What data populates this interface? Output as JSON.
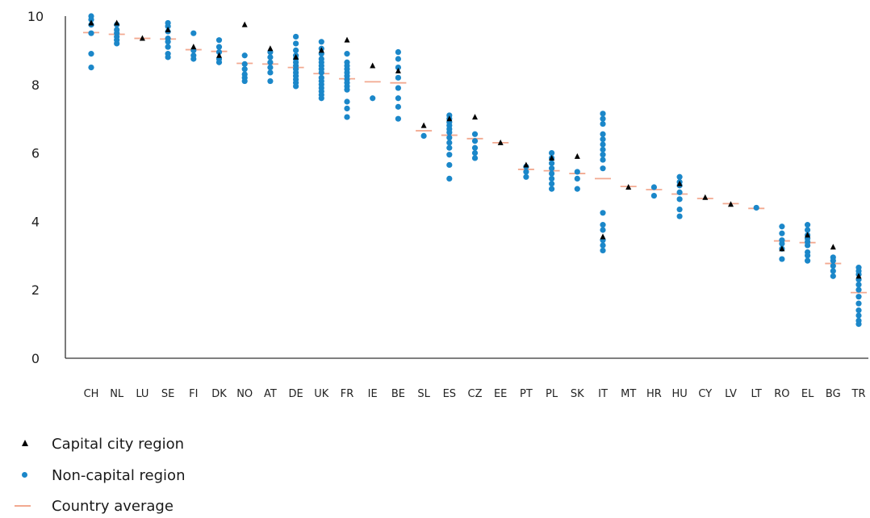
{
  "chart_data": {
    "type": "scatter",
    "title": "",
    "xlabel": "",
    "ylabel": "",
    "ylim": [
      0,
      10
    ],
    "y_ticks": [
      "0",
      "2",
      "4",
      "6",
      "8",
      "10"
    ],
    "grid": false,
    "legend_position": "bottom-left",
    "categories": [
      "CH",
      "NL",
      "LU",
      "SE",
      "FI",
      "DK",
      "NO",
      "AT",
      "DE",
      "UK",
      "FR",
      "IE",
      "BE",
      "SL",
      "ES",
      "CZ",
      "EE",
      "PT",
      "PL",
      "SK",
      "IT",
      "MT",
      "HR",
      "HU",
      "CY",
      "LV",
      "LT",
      "RO",
      "EL",
      "BG",
      "TR"
    ],
    "series": [
      {
        "name": "Capital city region",
        "marker": "triangle",
        "color": "#000000",
        "values": [
          9.8,
          9.8,
          9.35,
          9.6,
          9.1,
          8.85,
          9.75,
          9.05,
          8.8,
          9.0,
          9.3,
          8.55,
          8.4,
          6.8,
          7.0,
          7.05,
          6.3,
          5.65,
          5.85,
          5.9,
          3.55,
          5.0,
          null,
          5.1,
          4.7,
          4.5,
          null,
          3.2,
          3.6,
          3.25,
          2.4
        ]
      },
      {
        "name": "Non-capital region",
        "marker": "circle",
        "color": "#1b87c9",
        "values": [
          [
            10.0,
            9.9,
            9.75,
            9.5,
            8.9,
            8.5
          ],
          [
            9.75,
            9.6,
            9.5,
            9.4,
            9.3,
            9.2
          ],
          [],
          [
            9.8,
            9.7,
            9.55,
            9.35,
            9.25,
            9.1,
            8.9,
            8.8
          ],
          [
            9.5,
            9.0,
            8.85,
            8.75
          ],
          [
            9.3,
            9.1,
            8.95,
            8.75,
            8.65
          ],
          [
            8.85,
            8.6,
            8.45,
            8.3,
            8.2,
            8.1
          ],
          [
            8.95,
            8.8,
            8.65,
            8.5,
            8.35,
            8.1
          ],
          [
            9.4,
            9.2,
            9.0,
            8.85,
            8.75,
            8.65,
            8.55,
            8.45,
            8.35,
            8.25,
            8.15,
            8.05,
            7.95
          ],
          [
            9.25,
            9.05,
            8.9,
            8.75,
            8.65,
            8.55,
            8.45,
            8.35,
            8.2,
            8.1,
            8.0,
            7.9,
            7.8,
            7.7,
            7.6
          ],
          [
            8.9,
            8.65,
            8.55,
            8.45,
            8.35,
            8.25,
            8.15,
            8.05,
            7.95,
            7.85,
            7.5,
            7.3,
            7.05
          ],
          [
            7.6
          ],
          [
            8.95,
            8.75,
            8.5,
            8.2,
            7.9,
            7.6,
            7.35,
            7.0
          ],
          [
            6.5
          ],
          [
            7.1,
            7.0,
            6.9,
            6.8,
            6.7,
            6.6,
            6.45,
            6.3,
            6.15,
            5.95,
            5.65,
            5.25
          ],
          [
            6.55,
            6.35,
            6.15,
            6.0,
            5.85
          ],
          [],
          [
            5.6,
            5.45,
            5.3
          ],
          [
            6.0,
            5.85,
            5.7,
            5.55,
            5.4,
            5.25,
            5.1,
            4.95
          ],
          [
            5.45,
            5.25,
            4.95
          ],
          [
            7.15,
            7.0,
            6.85,
            6.55,
            6.4,
            6.25,
            6.1,
            5.95,
            5.8,
            5.55,
            4.25,
            3.9,
            3.75,
            3.45,
            3.3,
            3.15
          ],
          [],
          [
            5.0,
            4.75
          ],
          [
            5.3,
            5.15,
            5.05,
            4.85,
            4.65,
            4.35,
            4.15
          ],
          [],
          [],
          [
            4.4
          ],
          [
            3.85,
            3.65,
            3.45,
            3.35,
            3.2,
            2.9
          ],
          [
            3.9,
            3.75,
            3.6,
            3.5,
            3.4,
            3.3,
            3.1,
            3.0,
            2.85
          ],
          [
            2.95,
            2.85,
            2.7,
            2.55,
            2.4
          ],
          [
            2.65,
            2.55,
            2.45,
            2.3,
            2.15,
            2.0,
            1.8,
            1.6,
            1.4,
            1.25,
            1.1,
            1.0
          ]
        ]
      },
      {
        "name": "Country average",
        "marker": "line",
        "color": "#f2a990",
        "values": [
          9.52,
          9.47,
          9.35,
          9.33,
          9.02,
          8.97,
          8.62,
          8.6,
          8.5,
          8.32,
          8.17,
          8.08,
          8.05,
          6.65,
          6.52,
          6.42,
          6.3,
          5.52,
          5.48,
          5.4,
          5.25,
          5.02,
          4.93,
          4.8,
          4.67,
          4.52,
          4.38,
          3.43,
          3.38,
          2.77,
          1.92
        ]
      }
    ]
  },
  "legend": {
    "items": [
      {
        "label": "Capital city region",
        "icon": "triangle-icon",
        "color": "#000000"
      },
      {
        "label": "Non-capital region",
        "icon": "dot-icon",
        "color": "#1b87c9"
      },
      {
        "label": "Country average",
        "icon": "line-icon",
        "color": "#f2a990"
      }
    ]
  }
}
